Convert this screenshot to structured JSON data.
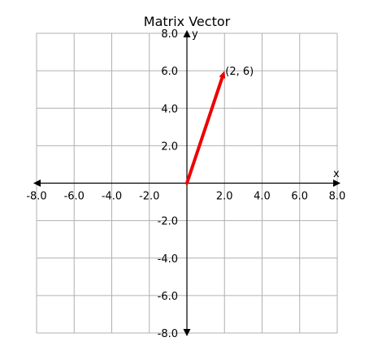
{
  "chart_data": {
    "type": "line",
    "title": "Matrix Vector",
    "xlabel": "x",
    "ylabel": "y",
    "xlim": [
      -8,
      8
    ],
    "ylim": [
      -8,
      8
    ],
    "grid": true,
    "x_ticks": [
      -8,
      -6,
      -4,
      -2,
      0,
      2,
      4,
      6,
      8
    ],
    "y_ticks": [
      -8,
      -6,
      -4,
      -2,
      0,
      2,
      4,
      6,
      8
    ],
    "x_tick_labels": [
      "-8.0",
      "-6.0",
      "-4.0",
      "-2.0",
      "",
      "2.0",
      "4.0",
      "6.0",
      "8.0"
    ],
    "y_tick_labels": [
      "-8.0",
      "-6.0",
      "-4.0",
      "-2.0",
      "",
      "2.0",
      "4.0",
      "6.0",
      "8.0"
    ],
    "vector": {
      "start": [
        0,
        0
      ],
      "end": [
        2,
        6
      ],
      "label": "(2, 6)",
      "color": "#ee0000"
    },
    "colors": {
      "grid": "#b0b0b0",
      "axis": "#000000"
    }
  }
}
